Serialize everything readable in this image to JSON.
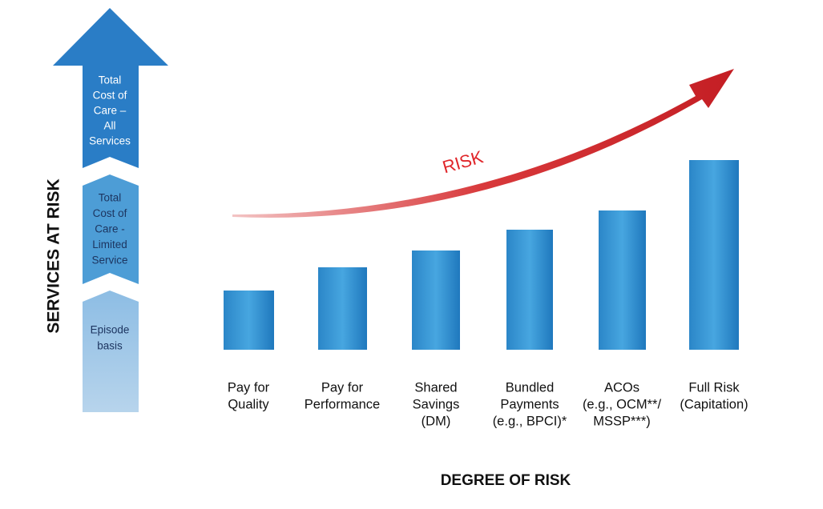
{
  "axis_label": "SERVICES AT RISK",
  "levels": [
    {
      "lines": [
        "Total",
        "Cost of",
        "Care –",
        "All",
        "Services"
      ]
    },
    {
      "lines": [
        "Total",
        "Cost of",
        "Care -",
        "Limited",
        "Service"
      ]
    },
    {
      "lines": [
        "Episode",
        "basis"
      ]
    }
  ],
  "risk_label": "RISK",
  "models": [
    {
      "lines": [
        "Pay for",
        "Quality"
      ]
    },
    {
      "lines": [
        "Pay for",
        "Performance"
      ]
    },
    {
      "lines": [
        "Shared",
        "Savings",
        "(DM)"
      ]
    },
    {
      "lines": [
        "Bundled",
        "Payments",
        "(e.g., BPCI)*"
      ]
    },
    {
      "lines": [
        "ACOs",
        "(e.g., OCM**/",
        "MSSP***)"
      ]
    },
    {
      "lines": [
        "Full Risk",
        "(Capitation)"
      ]
    }
  ],
  "x_axis_label": "DEGREE OF RISK"
}
